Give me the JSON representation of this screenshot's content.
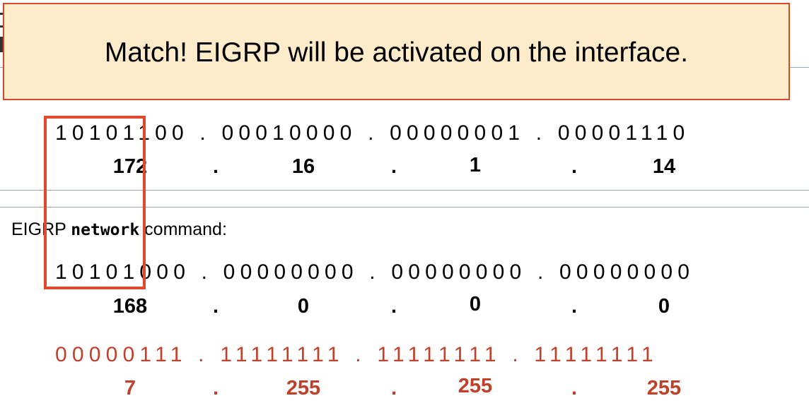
{
  "callout": {
    "message": "Match!  EIGRP will be activated on the interface."
  },
  "interface_address": {
    "binary": "10101100.00010000.00000001.00001110",
    "decimal": [
      "172",
      "16",
      "1",
      "14"
    ]
  },
  "network_command": {
    "prefix": "EIGRP ",
    "keyword": "network",
    "suffix": " command:",
    "binary": "10101000.00000000.00000000.00000000",
    "decimal": [
      "168",
      "0",
      "0",
      "0"
    ]
  },
  "wildcard_mask": {
    "binary": "00000111.11111111.11111111.11111111",
    "decimal": [
      "7",
      "255",
      "255",
      "255"
    ]
  },
  "separator": ".",
  "colors": {
    "wildcard": "#c0412b",
    "highlight": "#e04a2a",
    "callout_bg": "#fdebc9",
    "callout_border": "#d9492b"
  }
}
